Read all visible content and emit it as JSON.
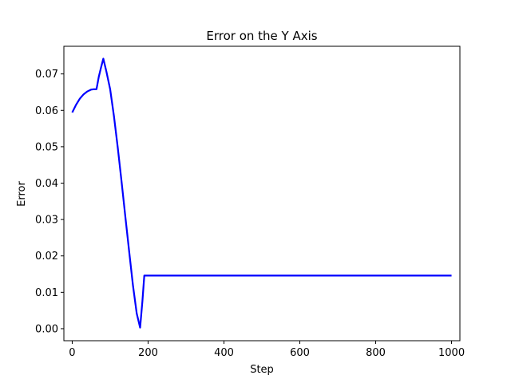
{
  "chart_data": {
    "type": "line",
    "title": "Error on the Y Axis",
    "xlabel": "Step",
    "ylabel": "Error",
    "xlim": [
      -22,
      1022
    ],
    "ylim": [
      -0.0033,
      0.0776
    ],
    "grid": false,
    "legend": "none",
    "x_ticks": [
      0,
      200,
      400,
      600,
      800,
      1000
    ],
    "y_ticks": [
      0.0,
      0.01,
      0.02,
      0.03,
      0.04,
      0.05,
      0.06,
      0.07
    ],
    "x_tick_labels": [
      "0",
      "200",
      "400",
      "600",
      "800",
      "1000"
    ],
    "y_tick_labels": [
      "0.00",
      "0.01",
      "0.02",
      "0.03",
      "0.04",
      "0.05",
      "0.06",
      "0.07"
    ],
    "series": [
      {
        "color": "#0000ff",
        "x": [
          0,
          10,
          20,
          30,
          40,
          50,
          57,
          64,
          70,
          76,
          82,
          90,
          100,
          110,
          120,
          130,
          140,
          150,
          160,
          170,
          179,
          185,
          190,
          200,
          300,
          400,
          500,
          600,
          700,
          800,
          900,
          1000
        ],
        "y": [
          0.0594,
          0.0615,
          0.0632,
          0.0644,
          0.0652,
          0.0657,
          0.0658,
          0.0658,
          0.0692,
          0.0718,
          0.0742,
          0.0707,
          0.0658,
          0.0584,
          0.0498,
          0.0405,
          0.0308,
          0.0213,
          0.012,
          0.0042,
          0.0003,
          0.0075,
          0.0146,
          0.0146,
          0.0146,
          0.0146,
          0.0146,
          0.0146,
          0.0146,
          0.0146,
          0.0146,
          0.0146
        ]
      }
    ]
  }
}
